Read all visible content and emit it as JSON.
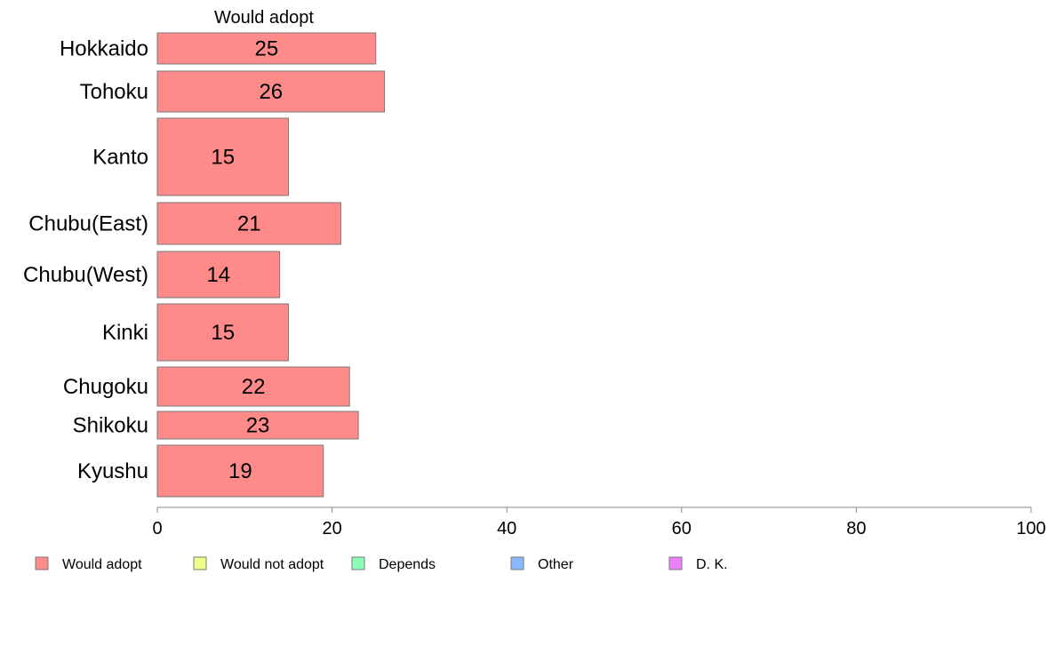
{
  "chart_data": {
    "type": "bar",
    "orientation": "horizontal",
    "title": "Would adopt",
    "categories": [
      "Hokkaido",
      "Tohoku",
      "Kanto",
      "Chubu(East)",
      "Chubu(West)",
      "Kinki",
      "Chugoku",
      "Shikoku",
      "Kyushu"
    ],
    "series": [
      {
        "name": "Would adopt",
        "values": [
          25,
          26,
          15,
          21,
          14,
          15,
          22,
          23,
          19
        ],
        "color": "#ff8a8a"
      }
    ],
    "xlim": [
      0,
      100
    ],
    "xticks": [
      0,
      20,
      40,
      60,
      80,
      100
    ],
    "grid": false,
    "legend_position": "bottom",
    "legend": [
      {
        "label": "Would adopt",
        "color": "#ff8a8a"
      },
      {
        "label": "Would not adopt",
        "color": "#eeff8a"
      },
      {
        "label": "Depends",
        "color": "#8affb8"
      },
      {
        "label": "Other",
        "color": "#8ab8ff"
      },
      {
        "label": "D. K.",
        "color": "#ee80ff"
      }
    ]
  }
}
